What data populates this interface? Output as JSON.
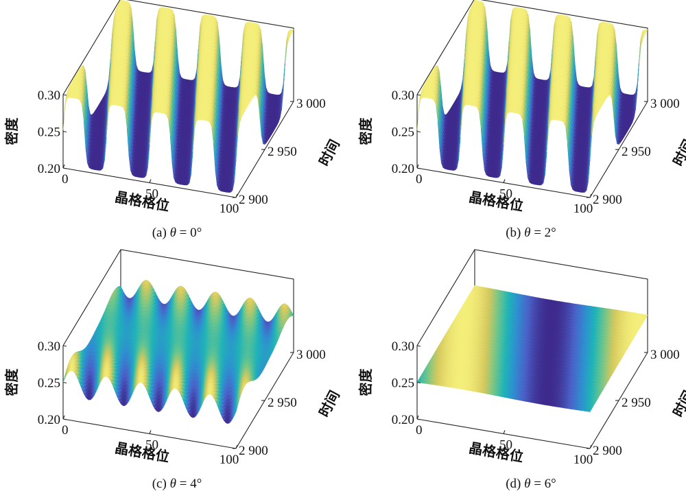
{
  "chart_data": [
    {
      "type": "surface",
      "caption": {
        "prefix": "(a) ",
        "theta": "θ",
        "rest": " = 0°"
      },
      "xlabel": "晶格格位",
      "ylabel": "时间",
      "zlabel": "密度",
      "xlim": [
        0,
        100
      ],
      "ylim": [
        2900,
        3000
      ],
      "zlim": [
        0.2,
        0.3
      ],
      "xticks": [
        "0",
        "50",
        "100"
      ],
      "yticks": [
        "2 900",
        "2 950",
        "3 000"
      ],
      "zticks": [
        "0.20",
        "0.25",
        "0.30"
      ],
      "surface": {
        "pattern": "square-wave stripes",
        "min": 0.205,
        "max": 0.298,
        "wavelength_sites": 25,
        "drift_sites_per_time": 0.3
      }
    },
    {
      "type": "surface",
      "caption": {
        "prefix": "(b) ",
        "theta": "θ",
        "rest": " = 2°"
      },
      "xlabel": "晶格格位",
      "ylabel": "时间",
      "zlabel": "密度",
      "xlim": [
        0,
        100
      ],
      "ylim": [
        2900,
        3000
      ],
      "zlim": [
        0.2,
        0.3
      ],
      "xticks": [
        "0",
        "50",
        "100"
      ],
      "yticks": [
        "2 900",
        "2 950",
        "3 000"
      ],
      "zticks": [
        "0.20",
        "0.25",
        "0.30"
      ],
      "surface": {
        "pattern": "square-wave stripes",
        "min": 0.205,
        "max": 0.298,
        "wavelength_sites": 25,
        "drift_sites_per_time": 0.3
      }
    },
    {
      "type": "surface",
      "caption": {
        "prefix": "(c) ",
        "theta": "θ",
        "rest": " = 4°"
      },
      "xlabel": "晶格格位",
      "ylabel": "时间",
      "zlabel": "密度",
      "xlim": [
        0,
        100
      ],
      "ylim": [
        2900,
        3000
      ],
      "zlim": [
        0.2,
        0.3
      ],
      "xticks": [
        "0",
        "50",
        "100"
      ],
      "yticks": [
        "2 900",
        "2 950",
        "3 000"
      ],
      "zticks": [
        "0.20",
        "0.25",
        "0.30"
      ],
      "surface": {
        "pattern": "smooth waves",
        "min": 0.232,
        "max": 0.268,
        "wavelength_sites": 20,
        "drift_sites_per_time": 0.3
      }
    },
    {
      "type": "surface",
      "caption": {
        "prefix": "(d) ",
        "theta": "θ",
        "rest": " = 6°"
      },
      "xlabel": "晶格格位",
      "ylabel": "时间",
      "zlabel": "密度",
      "xlim": [
        0,
        100
      ],
      "ylim": [
        2900,
        3000
      ],
      "zlim": [
        0.2,
        0.3
      ],
      "xticks": [
        "0",
        "50",
        "100"
      ],
      "yticks": [
        "2 900",
        "2 950",
        "3 000"
      ],
      "zticks": [
        "0.20",
        "0.25",
        "0.30"
      ],
      "surface": {
        "pattern": "nearly uniform",
        "min": 0.249,
        "max": 0.251,
        "wavelength_sites": 100,
        "drift_sites_per_time": 0.3
      }
    }
  ],
  "colormap": [
    "#3e2a8c",
    "#4a62c8",
    "#2f8fd0",
    "#1fb4b8",
    "#6cc58c",
    "#d6c95e",
    "#f4ee7a"
  ]
}
